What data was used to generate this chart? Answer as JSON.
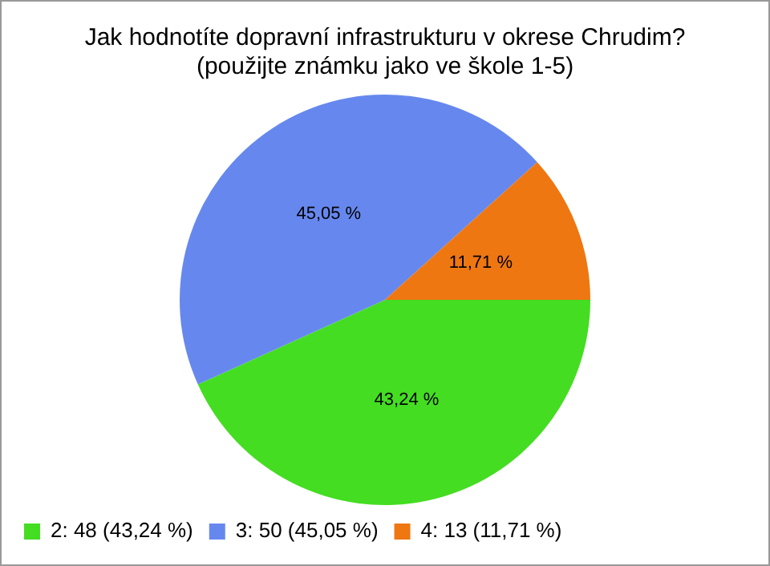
{
  "chart_data": {
    "type": "pie",
    "title": "Jak hodnotíte dopravní infrastrukturu v okrese Chrudim? (použijte známku jako ve škole 1-5)",
    "categories": [
      "2: 48 (43,24 %)",
      "3: 50 (45,05 %)",
      "4: 13 (11,71 %)"
    ],
    "values": [
      43.24,
      45.05,
      11.71
    ],
    "colors": [
      "#44dd22",
      "#6688ee",
      "#ee7711"
    ],
    "value_labels": [
      "43,24 %",
      "45,05 %",
      "11,71 %"
    ],
    "legend": "bottom left"
  }
}
